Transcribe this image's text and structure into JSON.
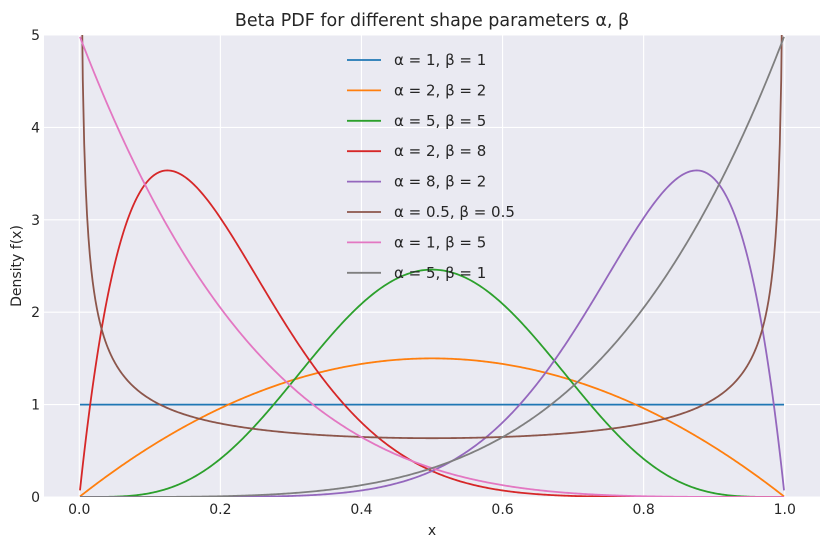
{
  "chart_data": {
    "type": "line",
    "title": "Beta PDF for different shape parameters α, β",
    "xlabel": "x",
    "ylabel": "Density f(x)",
    "xlim": [
      -0.05,
      1.05
    ],
    "ylim": [
      0,
      5
    ],
    "grid": true,
    "legend_position": "top-center",
    "x_ticks": [
      0.0,
      0.2,
      0.4,
      0.6,
      0.8,
      1.0
    ],
    "x_tick_labels": [
      "0.0",
      "0.2",
      "0.4",
      "0.6",
      "0.8",
      "1.0"
    ],
    "y_ticks": [
      0,
      1,
      2,
      3,
      4,
      5
    ],
    "y_tick_labels": [
      "0",
      "1",
      "2",
      "3",
      "4",
      "5"
    ],
    "x_range": [
      0.001,
      0.999
    ],
    "series": [
      {
        "name": "α = 1, β = 1",
        "alpha": 1,
        "beta": 1,
        "color": "#1f77b4"
      },
      {
        "name": "α = 2, β = 2",
        "alpha": 2,
        "beta": 2,
        "color": "#ff7f0e"
      },
      {
        "name": "α = 5, β = 5",
        "alpha": 5,
        "beta": 5,
        "color": "#2ca02c"
      },
      {
        "name": "α = 2, β = 8",
        "alpha": 2,
        "beta": 8,
        "color": "#d62728"
      },
      {
        "name": "α = 8, β = 2",
        "alpha": 8,
        "beta": 2,
        "color": "#9467bd"
      },
      {
        "name": "α = 0.5, β = 0.5",
        "alpha": 0.5,
        "beta": 0.5,
        "color": "#8c564b"
      },
      {
        "name": "α = 1, β = 5",
        "alpha": 1,
        "beta": 5,
        "color": "#e377c2"
      },
      {
        "name": "α = 5, β = 1",
        "alpha": 5,
        "beta": 1,
        "color": "#7f7f7f"
      }
    ]
  }
}
